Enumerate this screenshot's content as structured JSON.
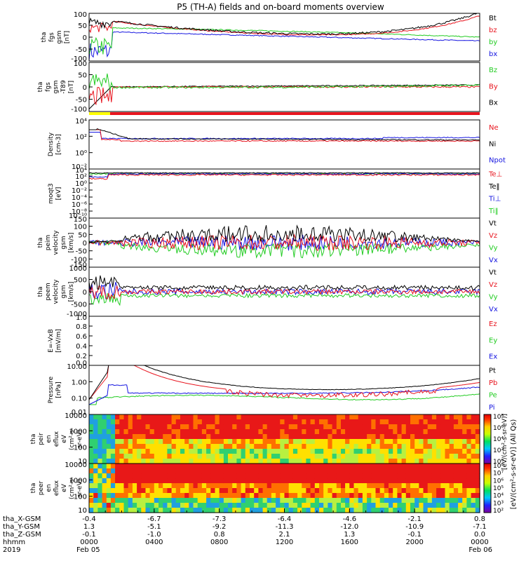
{
  "title": "P5 (TH-A) fields and on-board moments overview",
  "colors": {
    "black": "#000000",
    "red": "#e8141e",
    "green": "#22cc22",
    "blue": "#1414e0",
    "yellow": "#ffff00"
  },
  "chart_data": [
    {
      "type": "line",
      "name": "fgs-gsm",
      "ylabel": [
        "tha",
        "fgs",
        "gsm",
        "[nT]"
      ],
      "yticks": [
        "100",
        "50",
        "0",
        "-50",
        "-100"
      ],
      "ylim": [
        -100,
        100
      ],
      "legend": [
        {
          "label": "Bt",
          "color": "black"
        },
        {
          "label": "bz",
          "color": "red"
        },
        {
          "label": "by",
          "color": "green"
        },
        {
          "label": "bx",
          "color": "blue"
        }
      ]
    },
    {
      "type": "line",
      "name": "fgs-gsm-t89",
      "ylabel": [
        "tha",
        "fgs",
        "gsm",
        "-T89",
        "[nT]"
      ],
      "yticks": [
        "100",
        "50",
        "0",
        "-50",
        "-100"
      ],
      "ylim": [
        -120,
        120
      ],
      "legend": [
        {
          "label": "Bz",
          "color": "green"
        },
        {
          "label": "By",
          "color": "red"
        },
        {
          "label": "Bx",
          "color": "black"
        }
      ]
    },
    {
      "type": "line",
      "name": "density",
      "ylabel": [
        "Density",
        "[cm-3]"
      ],
      "yticks": [
        "10⁴",
        "10²",
        "10⁰",
        "10⁻²"
      ],
      "log": true,
      "legend": [
        {
          "label": "Ne",
          "color": "red"
        },
        {
          "label": "Ni",
          "color": "black"
        },
        {
          "label": "Npot",
          "color": "blue"
        }
      ]
    },
    {
      "type": "line",
      "name": "temperature",
      "ylabel": [
        "moqt3",
        "[eV]"
      ],
      "yticks": [
        "10⁴",
        "10²",
        "10⁰",
        "10⁻²",
        "10⁻⁴",
        "10⁻⁶",
        "10⁻⁸",
        "10⁻¹⁰"
      ],
      "log": true,
      "legend": [
        {
          "label": "Te⊥",
          "color": "red"
        },
        {
          "label": "Te‖",
          "color": "black"
        },
        {
          "label": "Ti⊥",
          "color": "blue"
        },
        {
          "label": "Ti‖",
          "color": "green"
        }
      ]
    },
    {
      "type": "line",
      "name": "peim-velocity",
      "ylabel": [
        "tha",
        "peim",
        "velocity",
        "gsm",
        "[km/s]"
      ],
      "yticks": [
        "150",
        "100",
        "50",
        "0",
        "-50",
        "-100",
        "-150"
      ],
      "ylim": [
        -150,
        150
      ],
      "legend": [
        {
          "label": "Vt",
          "color": "black"
        },
        {
          "label": "Vz",
          "color": "red"
        },
        {
          "label": "Vy",
          "color": "green"
        },
        {
          "label": "Vx",
          "color": "blue"
        }
      ]
    },
    {
      "type": "line",
      "name": "peem-velocity",
      "ylabel": [
        "tha",
        "peem",
        "velocity",
        "gsm",
        "[km/s]"
      ],
      "yticks": [
        "1000",
        "500",
        "0",
        "-500",
        "-1000"
      ],
      "ylim": [
        -1000,
        1000
      ],
      "legend": [
        {
          "label": "Vt",
          "color": "black"
        },
        {
          "label": "Vz",
          "color": "red"
        },
        {
          "label": "Vy",
          "color": "green"
        },
        {
          "label": "Vx",
          "color": "blue"
        }
      ]
    },
    {
      "type": "line",
      "name": "e-field",
      "ylabel": [
        "E=-VxB",
        "[mV/m]"
      ],
      "yticks": [
        "1.0",
        "0.8",
        "0.6",
        "0.4",
        "0.2",
        "0.0"
      ],
      "ylim": [
        0,
        1
      ],
      "legend": [
        {
          "label": "Ez",
          "color": "red"
        },
        {
          "label": "Ey",
          "color": "green"
        },
        {
          "label": "Ex",
          "color": "blue"
        }
      ]
    },
    {
      "type": "line",
      "name": "pressure",
      "ylabel": [
        "Pressure",
        "[nPa]"
      ],
      "yticks": [
        "10.00",
        "1.00",
        "0.10",
        "0.01"
      ],
      "log": true,
      "legend": [
        {
          "label": "Pt",
          "color": "black"
        },
        {
          "label": "Pb",
          "color": "red"
        },
        {
          "label": "Pe",
          "color": "green"
        },
        {
          "label": "Pi",
          "color": "blue"
        }
      ]
    },
    {
      "type": "heatmap",
      "name": "peir-eflux",
      "ylabel": [
        "tha",
        "peir",
        "en",
        "eflux",
        "eV",
        "(cm²-s-",
        "sr-eV)"
      ],
      "yticks": [
        "10000",
        "1000",
        "100",
        "10"
      ]
    },
    {
      "type": "heatmap",
      "name": "peer-eflux",
      "ylabel": [
        "tha",
        "peer",
        "en",
        "eflux",
        "eV",
        "(cm²-s-",
        "sr-eV)"
      ],
      "yticks": [
        "10000",
        "1000",
        "100",
        "10"
      ]
    }
  ],
  "colorbar": {
    "ticks_top": [
      "10⁸",
      "10⁶",
      "10⁴",
      "10²",
      "10⁰"
    ],
    "ticks_bottom": [
      "10⁸",
      "10⁷",
      "10⁶",
      "10⁵",
      "10⁴",
      "10³",
      "10²"
    ],
    "label": "[eV/(cm²-s-sr-eV)] (All Qs)",
    "label_overlay": "[eV/(cm²-s-sr-eV)]"
  },
  "x_axis": {
    "row_labels": [
      "tha_X-GSM",
      "tha_Y-GSM",
      "tha_Z-GSM",
      "hhmm",
      "2019"
    ],
    "columns": [
      [
        "-0.4",
        "1.3",
        "-0.1",
        "0000",
        "Feb 05"
      ],
      [
        "-6.7",
        "-5.1",
        "-1.0",
        "0400",
        ""
      ],
      [
        "-7.3",
        "-9.2",
        "0.8",
        "0800",
        ""
      ],
      [
        "-6.4",
        "-11.3",
        "2.1",
        "1200",
        ""
      ],
      [
        "-4.6",
        "-12.0",
        "1.3",
        "1600",
        ""
      ],
      [
        "-2.1",
        "-10.9",
        "-0.1",
        "2000",
        ""
      ],
      [
        "0.8",
        "-7.1",
        "0.0",
        "0000",
        "Feb 06"
      ]
    ]
  }
}
